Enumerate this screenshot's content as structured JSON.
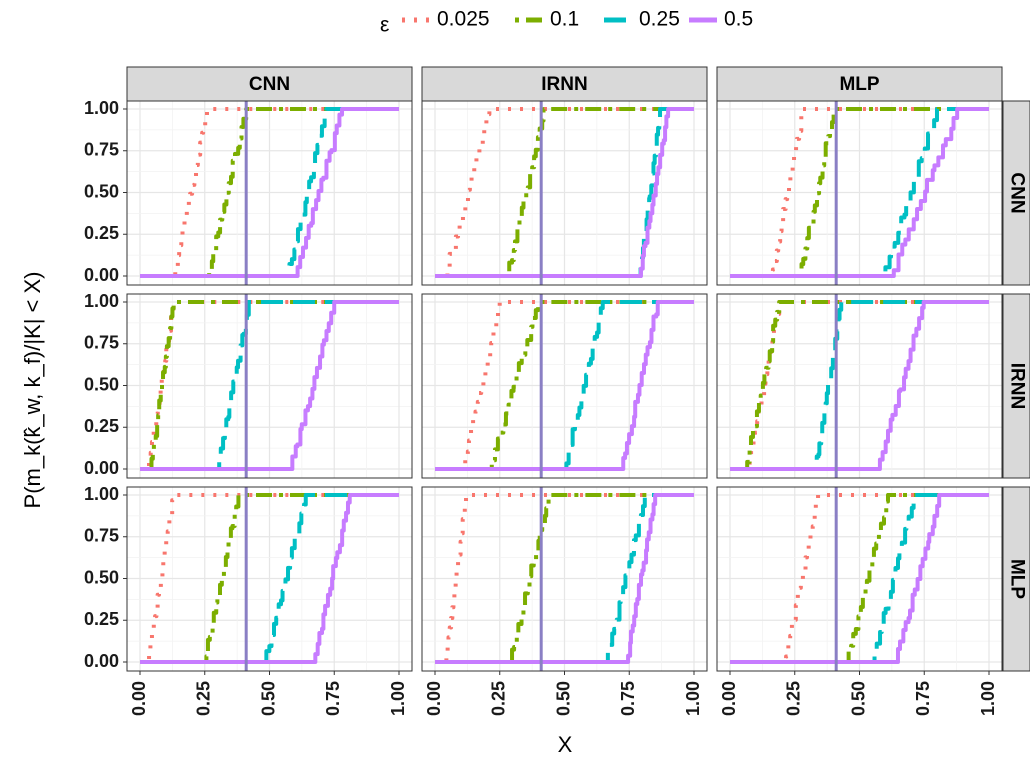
{
  "chart_data": {
    "type": "line",
    "xlabel": "X",
    "ylabel": "P(m_k(k̂_w, k_f)/|K| < X)",
    "xlim": [
      0,
      1
    ],
    "ylim": [
      0,
      1
    ],
    "x_ticks": [
      "0.00",
      "0.25",
      "0.50",
      "0.75",
      "1.00"
    ],
    "y_ticks": [
      "0.00",
      "0.25",
      "0.50",
      "0.75",
      "1.00"
    ],
    "grid": true,
    "legend": {
      "title": "ε",
      "position": "top",
      "entries": [
        "0.025",
        "0.1",
        "0.25",
        "0.5"
      ]
    },
    "col_facets": [
      "CNN",
      "IRNN",
      "MLP"
    ],
    "row_facets": [
      "CNN",
      "IRNN",
      "MLP"
    ],
    "reference_line_x": 0.41,
    "series": [
      {
        "name": "0.025",
        "color": "#F8766D",
        "dash": "dotted"
      },
      {
        "name": "0.1",
        "color": "#7CAE00",
        "dash": "dotdash"
      },
      {
        "name": "0.25",
        "color": "#00BFC4",
        "dash": "longdash"
      },
      {
        "name": "0.5",
        "color": "#C77CFF",
        "dash": "solid"
      }
    ],
    "panels": [
      {
        "row": "CNN",
        "col": "CNN",
        "ranges": [
          [
            0.13,
            0.26
          ],
          [
            0.26,
            0.41
          ],
          [
            0.57,
            0.72
          ],
          [
            0.6,
            0.78
          ]
        ]
      },
      {
        "row": "CNN",
        "col": "IRNN",
        "ranges": [
          [
            0.04,
            0.21
          ],
          [
            0.28,
            0.42
          ],
          [
            0.79,
            0.87
          ],
          [
            0.79,
            0.9
          ]
        ]
      },
      {
        "row": "CNN",
        "col": "MLP",
        "ranges": [
          [
            0.16,
            0.28
          ],
          [
            0.27,
            0.4
          ],
          [
            0.59,
            0.8
          ],
          [
            0.62,
            0.88
          ]
        ]
      },
      {
        "row": "IRNN",
        "col": "CNN",
        "ranges": [
          [
            0.03,
            0.13
          ],
          [
            0.04,
            0.13
          ],
          [
            0.3,
            0.42
          ],
          [
            0.58,
            0.75
          ]
        ]
      },
      {
        "row": "IRNN",
        "col": "IRNN",
        "ranges": [
          [
            0.11,
            0.25
          ],
          [
            0.21,
            0.4
          ],
          [
            0.5,
            0.65
          ],
          [
            0.72,
            0.86
          ]
        ]
      },
      {
        "row": "IRNN",
        "col": "MLP",
        "ranges": [
          [
            0.07,
            0.19
          ],
          [
            0.06,
            0.19
          ],
          [
            0.33,
            0.43
          ],
          [
            0.57,
            0.75
          ]
        ]
      },
      {
        "row": "MLP",
        "col": "CNN",
        "ranges": [
          [
            0.03,
            0.13
          ],
          [
            0.25,
            0.38
          ],
          [
            0.48,
            0.64
          ],
          [
            0.67,
            0.81
          ]
        ]
      },
      {
        "row": "MLP",
        "col": "IRNN",
        "ranges": [
          [
            0.04,
            0.12
          ],
          [
            0.29,
            0.44
          ],
          [
            0.66,
            0.81
          ],
          [
            0.74,
            0.85
          ]
        ]
      },
      {
        "row": "MLP",
        "col": "MLP",
        "ranges": [
          [
            0.21,
            0.34
          ],
          [
            0.45,
            0.61
          ],
          [
            0.55,
            0.71
          ],
          [
            0.64,
            0.81
          ]
        ]
      }
    ]
  }
}
